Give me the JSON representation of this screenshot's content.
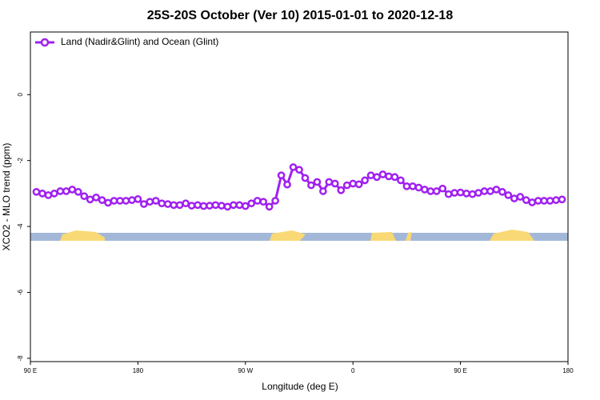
{
  "chart_data": {
    "type": "line",
    "title": "25S-20S October (Ver 10)   2015-01-01 to 2020-12-18",
    "x_label": "Longitude (deg E)",
    "y_label": "XCO2 - MLO trend (ppm)",
    "xlim": [
      90,
      540
    ],
    "ylim": [
      -8.1,
      1.9
    ],
    "xticks": [
      {
        "value": 90,
        "label": "90 E"
      },
      {
        "value": 180,
        "label": "180"
      },
      {
        "value": 270,
        "label": "90 W"
      },
      {
        "value": 360,
        "label": "0"
      },
      {
        "value": 450,
        "label": "90 E"
      },
      {
        "value": 540,
        "label": "180"
      }
    ],
    "yticks": [
      -8,
      -6,
      -4,
      -2,
      0
    ],
    "legend": "upper left",
    "series": [
      {
        "name": "Land (Nadir&Glint) and Ocean (Glint)",
        "color": "#a020f0",
        "x": [
          95,
          100,
          105,
          110,
          115,
          120,
          125,
          130,
          135,
          140,
          145,
          150,
          155,
          160,
          165,
          170,
          175,
          180,
          185,
          190,
          195,
          200,
          205,
          210,
          215,
          220,
          225,
          230,
          235,
          240,
          245,
          250,
          255,
          260,
          265,
          270,
          275,
          280,
          285,
          290,
          295,
          300,
          305,
          310,
          315,
          320,
          325,
          330,
          335,
          340,
          345,
          350,
          355,
          360,
          365,
          370,
          375,
          380,
          385,
          390,
          395,
          400,
          405,
          410,
          415,
          420,
          425,
          430,
          435,
          440,
          445,
          450,
          455,
          460,
          465,
          470,
          475,
          480,
          485,
          490,
          495,
          500,
          505,
          510,
          515,
          520,
          525,
          530,
          535
        ],
        "values": [
          -2.95,
          -3.0,
          -3.05,
          -3.0,
          -2.93,
          -2.93,
          -2.88,
          -2.95,
          -3.08,
          -3.18,
          -3.12,
          -3.2,
          -3.28,
          -3.22,
          -3.22,
          -3.22,
          -3.2,
          -3.17,
          -3.32,
          -3.25,
          -3.22,
          -3.3,
          -3.32,
          -3.35,
          -3.35,
          -3.3,
          -3.37,
          -3.35,
          -3.38,
          -3.37,
          -3.35,
          -3.37,
          -3.4,
          -3.35,
          -3.35,
          -3.38,
          -3.3,
          -3.22,
          -3.25,
          -3.4,
          -3.22,
          -2.45,
          -2.73,
          -2.2,
          -2.28,
          -2.53,
          -2.75,
          -2.65,
          -2.93,
          -2.65,
          -2.7,
          -2.9,
          -2.75,
          -2.7,
          -2.72,
          -2.6,
          -2.45,
          -2.5,
          -2.42,
          -2.48,
          -2.5,
          -2.6,
          -2.78,
          -2.78,
          -2.82,
          -2.88,
          -2.93,
          -2.93,
          -2.85,
          -3.02,
          -2.98,
          -2.97,
          -3.0,
          -3.02,
          -2.98,
          -2.93,
          -2.93,
          -2.88,
          -2.95,
          -3.05,
          -3.15,
          -3.1,
          -3.2,
          -3.27,
          -3.22,
          -3.22,
          -3.22,
          -3.2,
          -3.18
        ]
      }
    ]
  }
}
